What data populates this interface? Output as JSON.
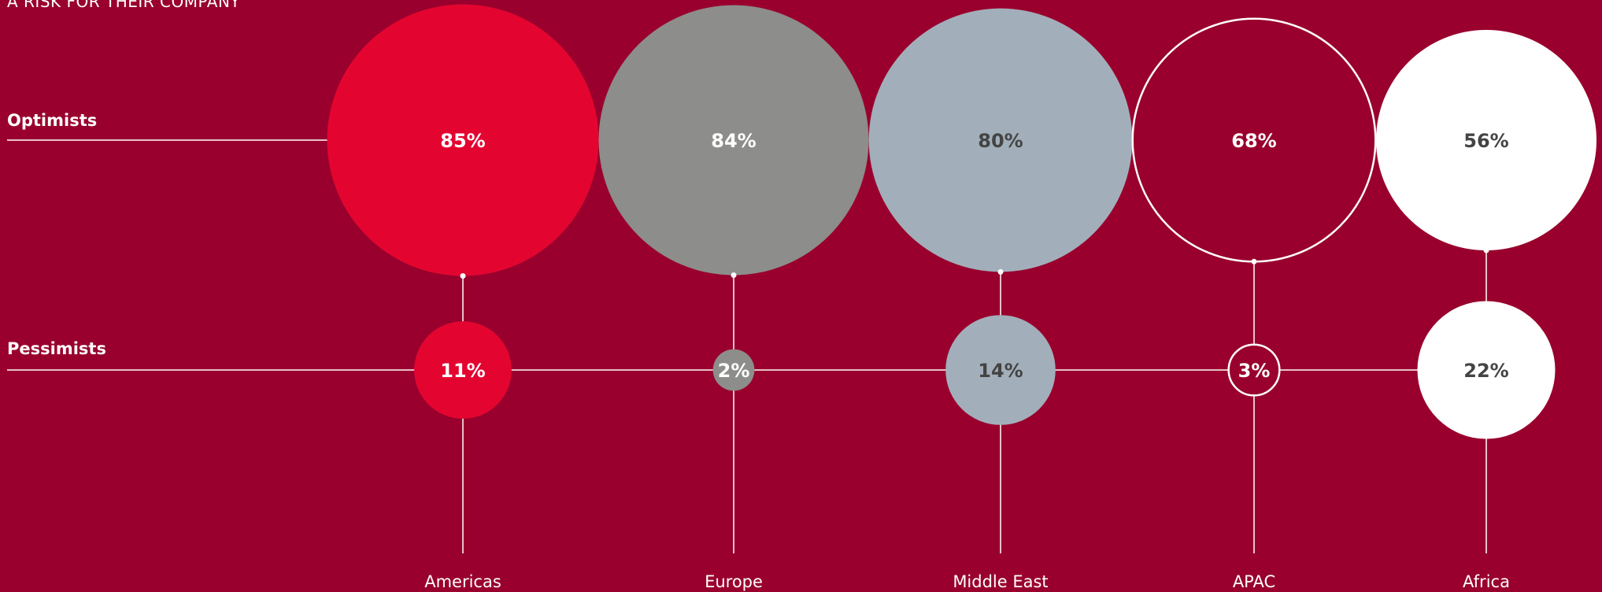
{
  "chart_data": {
    "type": "bubble",
    "title": "A RISK FOR THEIR COMPANY",
    "categories": [
      "Americas",
      "Europe",
      "Middle East",
      "APAC",
      "Africa"
    ],
    "series": [
      {
        "name": "Optimists",
        "values": [
          85,
          84,
          80,
          68,
          56
        ],
        "labels": [
          "85%",
          "84%",
          "80%",
          "68%",
          "56%"
        ]
      },
      {
        "name": "Pessimists",
        "values": [
          11,
          2,
          14,
          3,
          22
        ],
        "labels": [
          "11%",
          "2%",
          "14%",
          "3%",
          "22%"
        ]
      }
    ],
    "unit": "%",
    "region_styles": [
      {
        "fill": "#e30530",
        "stroke": "none",
        "text_color": "#ffffff"
      },
      {
        "fill": "#8d8d8b",
        "stroke": "none",
        "text_color": "#ffffff"
      },
      {
        "fill": "#a2afba",
        "stroke": "none",
        "text_color": "#444444"
      },
      {
        "fill": "none",
        "stroke": "#ffffff",
        "text_color": "#ffffff"
      },
      {
        "fill": "#ffffff",
        "stroke": "none",
        "text_color": "#444444"
      }
    ]
  },
  "colors": {
    "background": "#99002d",
    "lines": "#ffffff"
  }
}
